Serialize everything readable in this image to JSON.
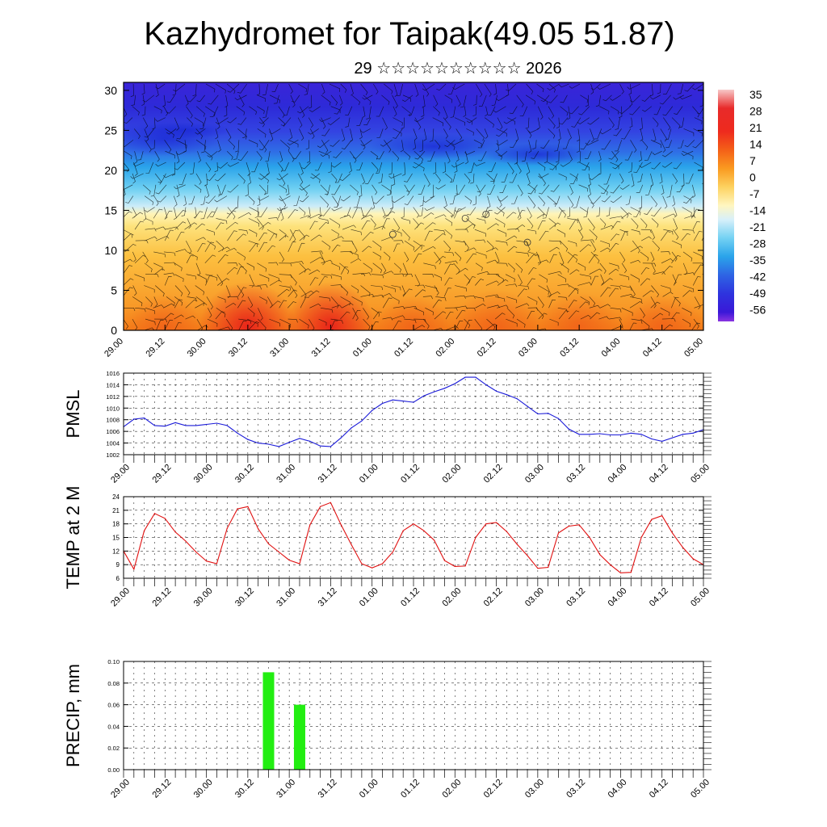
{
  "header": {
    "title": "Kazhydromet for Taipak(49.05 51.87)",
    "subtitle": "29 ☆☆☆☆☆☆☆☆☆☆ 2026"
  },
  "time_labels": [
    "29.00",
    "29.12",
    "30.00",
    "30.12",
    "31.00",
    "31.12",
    "01.00",
    "01.12",
    "02.00",
    "02.12",
    "03.00",
    "03.12",
    "04.00",
    "04.12",
    "05.00"
  ],
  "chart_data": [
    {
      "type": "heatmap",
      "name": "cross-section",
      "title": "",
      "xlabel": "",
      "ylabel": "",
      "x": [
        "29.00",
        "29.12",
        "30.00",
        "30.12",
        "31.00",
        "31.12",
        "01.00",
        "01.12",
        "02.00",
        "02.12",
        "03.00",
        "03.12",
        "04.00",
        "04.12",
        "05.00"
      ],
      "ylim": [
        0,
        31
      ],
      "y_ticks": [
        0,
        5,
        10,
        15,
        20,
        25,
        30
      ],
      "colorbar": {
        "labels": [
          "35",
          "28",
          "21",
          "14",
          "7",
          "0",
          "-7",
          "-14",
          "-21",
          "-28",
          "-35",
          "-42",
          "-49",
          "-56"
        ],
        "colors": [
          "#f7c6c6",
          "#e8322e",
          "#ee4a1e",
          "#f8841e",
          "#fcb938",
          "#fde07a",
          "#fff5b8",
          "#d6f0fa",
          "#6fd0f2",
          "#27a8e8",
          "#2f6fe6",
          "#2b3ae0",
          "#3416d6",
          "#7d2ce0"
        ]
      },
      "overlay": "wind barbs",
      "surface_temperature_range": [
        -15,
        32
      ]
    },
    {
      "type": "line",
      "name": "PMSL",
      "ylabel": "PMSL",
      "ylim": [
        1002,
        1016
      ],
      "y_ticks": [
        1002,
        1004,
        1006,
        1008,
        1010,
        1012,
        1014,
        1016
      ],
      "color": "#1a1ad8",
      "x": [
        "29.00",
        "29.03",
        "29.06",
        "29.09",
        "29.12",
        "29.15",
        "29.18",
        "29.21",
        "30.00",
        "30.03",
        "30.06",
        "30.09",
        "30.12",
        "30.15",
        "30.18",
        "30.21",
        "31.00",
        "31.03",
        "31.06",
        "31.09",
        "31.12",
        "31.15",
        "31.18",
        "31.21",
        "01.00",
        "01.03",
        "01.06",
        "01.09",
        "01.12",
        "01.15",
        "01.18",
        "01.21",
        "02.00",
        "02.03",
        "02.06",
        "02.09",
        "02.12",
        "02.15",
        "02.18",
        "02.21",
        "03.00",
        "03.03",
        "03.06",
        "03.09",
        "03.12",
        "03.15",
        "03.18",
        "03.21",
        "04.00",
        "04.03",
        "04.06",
        "04.09",
        "04.12",
        "04.15",
        "04.18",
        "04.21",
        "05.00"
      ],
      "values": [
        1006.8,
        1008.1,
        1008.3,
        1007.0,
        1006.9,
        1007.5,
        1007.0,
        1007.0,
        1007.2,
        1007.4,
        1007.0,
        1005.7,
        1004.6,
        1004.0,
        1003.8,
        1003.4,
        1004.1,
        1004.8,
        1004.3,
        1003.5,
        1003.4,
        1004.9,
        1006.6,
        1007.8,
        1009.6,
        1010.8,
        1011.4,
        1011.2,
        1011.0,
        1012.1,
        1012.8,
        1013.4,
        1014.2,
        1015.3,
        1015.3,
        1014.0,
        1012.9,
        1012.3,
        1011.6,
        1010.3,
        1009.0,
        1009.1,
        1008.2,
        1006.4,
        1005.5,
        1005.5,
        1005.6,
        1005.4,
        1005.4,
        1005.7,
        1005.5,
        1004.7,
        1004.3,
        1004.9,
        1005.5,
        1005.7,
        1006.3
      ]
    },
    {
      "type": "line",
      "name": "TEMP at 2 M",
      "ylabel": "TEMP at 2 M",
      "ylim": [
        6,
        24
      ],
      "y_ticks": [
        6,
        9,
        12,
        15,
        18,
        21,
        24
      ],
      "color": "#e01010",
      "x": [
        "29.00",
        "29.03",
        "29.06",
        "29.09",
        "29.12",
        "29.15",
        "29.18",
        "29.21",
        "30.00",
        "30.03",
        "30.06",
        "30.09",
        "30.12",
        "30.15",
        "30.18",
        "30.21",
        "31.00",
        "31.03",
        "31.06",
        "31.09",
        "31.12",
        "31.15",
        "31.18",
        "31.21",
        "01.00",
        "01.03",
        "01.06",
        "01.09",
        "01.12",
        "01.15",
        "01.18",
        "01.21",
        "02.00",
        "02.03",
        "02.06",
        "02.09",
        "02.12",
        "02.15",
        "02.18",
        "02.21",
        "03.00",
        "03.03",
        "03.06",
        "03.09",
        "03.12",
        "03.15",
        "03.18",
        "03.21",
        "04.00",
        "04.03",
        "04.06",
        "04.09",
        "04.12",
        "04.15",
        "04.18",
        "04.21",
        "05.00"
      ],
      "values": [
        12.0,
        8.0,
        16.5,
        20.3,
        19.2,
        16.2,
        14.2,
        11.8,
        9.8,
        9.2,
        17.0,
        21.3,
        21.8,
        16.9,
        13.6,
        11.8,
        10.0,
        9.2,
        17.8,
        21.8,
        22.7,
        17.8,
        13.4,
        9.2,
        8.3,
        9.2,
        11.8,
        16.5,
        18.0,
        16.5,
        14.4,
        9.9,
        8.6,
        8.7,
        15.0,
        18.0,
        18.3,
        16.3,
        13.5,
        11.0,
        8.2,
        8.4,
        16.0,
        17.5,
        17.8,
        15.0,
        11.2,
        9.0,
        7.2,
        7.3,
        15.0,
        19.0,
        19.8,
        16.0,
        12.8,
        10.3,
        9.0
      ]
    },
    {
      "type": "bar",
      "name": "PRECIP, mm",
      "ylabel": "PRECIP, mm",
      "ylim": [
        0,
        0.1
      ],
      "y_ticks": [
        "0.00",
        "0.02",
        "0.04",
        "0.06",
        "0.08",
        "0.10"
      ],
      "color": "#22ee11",
      "x": [
        "29.00",
        "29.03",
        "29.06",
        "29.09",
        "29.12",
        "29.15",
        "29.18",
        "29.21",
        "30.00",
        "30.03",
        "30.06",
        "30.09",
        "30.12",
        "30.15",
        "30.18",
        "30.21",
        "31.00",
        "31.03",
        "31.06",
        "31.09",
        "31.12",
        "31.15",
        "31.18",
        "31.21",
        "01.00",
        "01.03",
        "01.06",
        "01.09",
        "01.12",
        "01.15",
        "01.18",
        "01.21",
        "02.00",
        "02.03",
        "02.06",
        "02.09",
        "02.12",
        "02.15",
        "02.18",
        "02.21",
        "03.00",
        "03.03",
        "03.06",
        "03.09",
        "03.12",
        "03.15",
        "03.18",
        "03.21",
        "04.00",
        "04.03",
        "04.06",
        "04.09",
        "04.12",
        "04.15",
        "04.18",
        "04.21",
        "05.00"
      ],
      "values": [
        0,
        0,
        0,
        0,
        0,
        0,
        0,
        0,
        0,
        0,
        0,
        0,
        0,
        0,
        0.09,
        0,
        0,
        0.06,
        0,
        0,
        0,
        0,
        0,
        0,
        0,
        0,
        0,
        0,
        0,
        0,
        0,
        0,
        0,
        0,
        0,
        0,
        0,
        0,
        0,
        0,
        0,
        0,
        0,
        0,
        0,
        0,
        0,
        0,
        0,
        0,
        0,
        0,
        0,
        0,
        0,
        0,
        0
      ]
    }
  ]
}
